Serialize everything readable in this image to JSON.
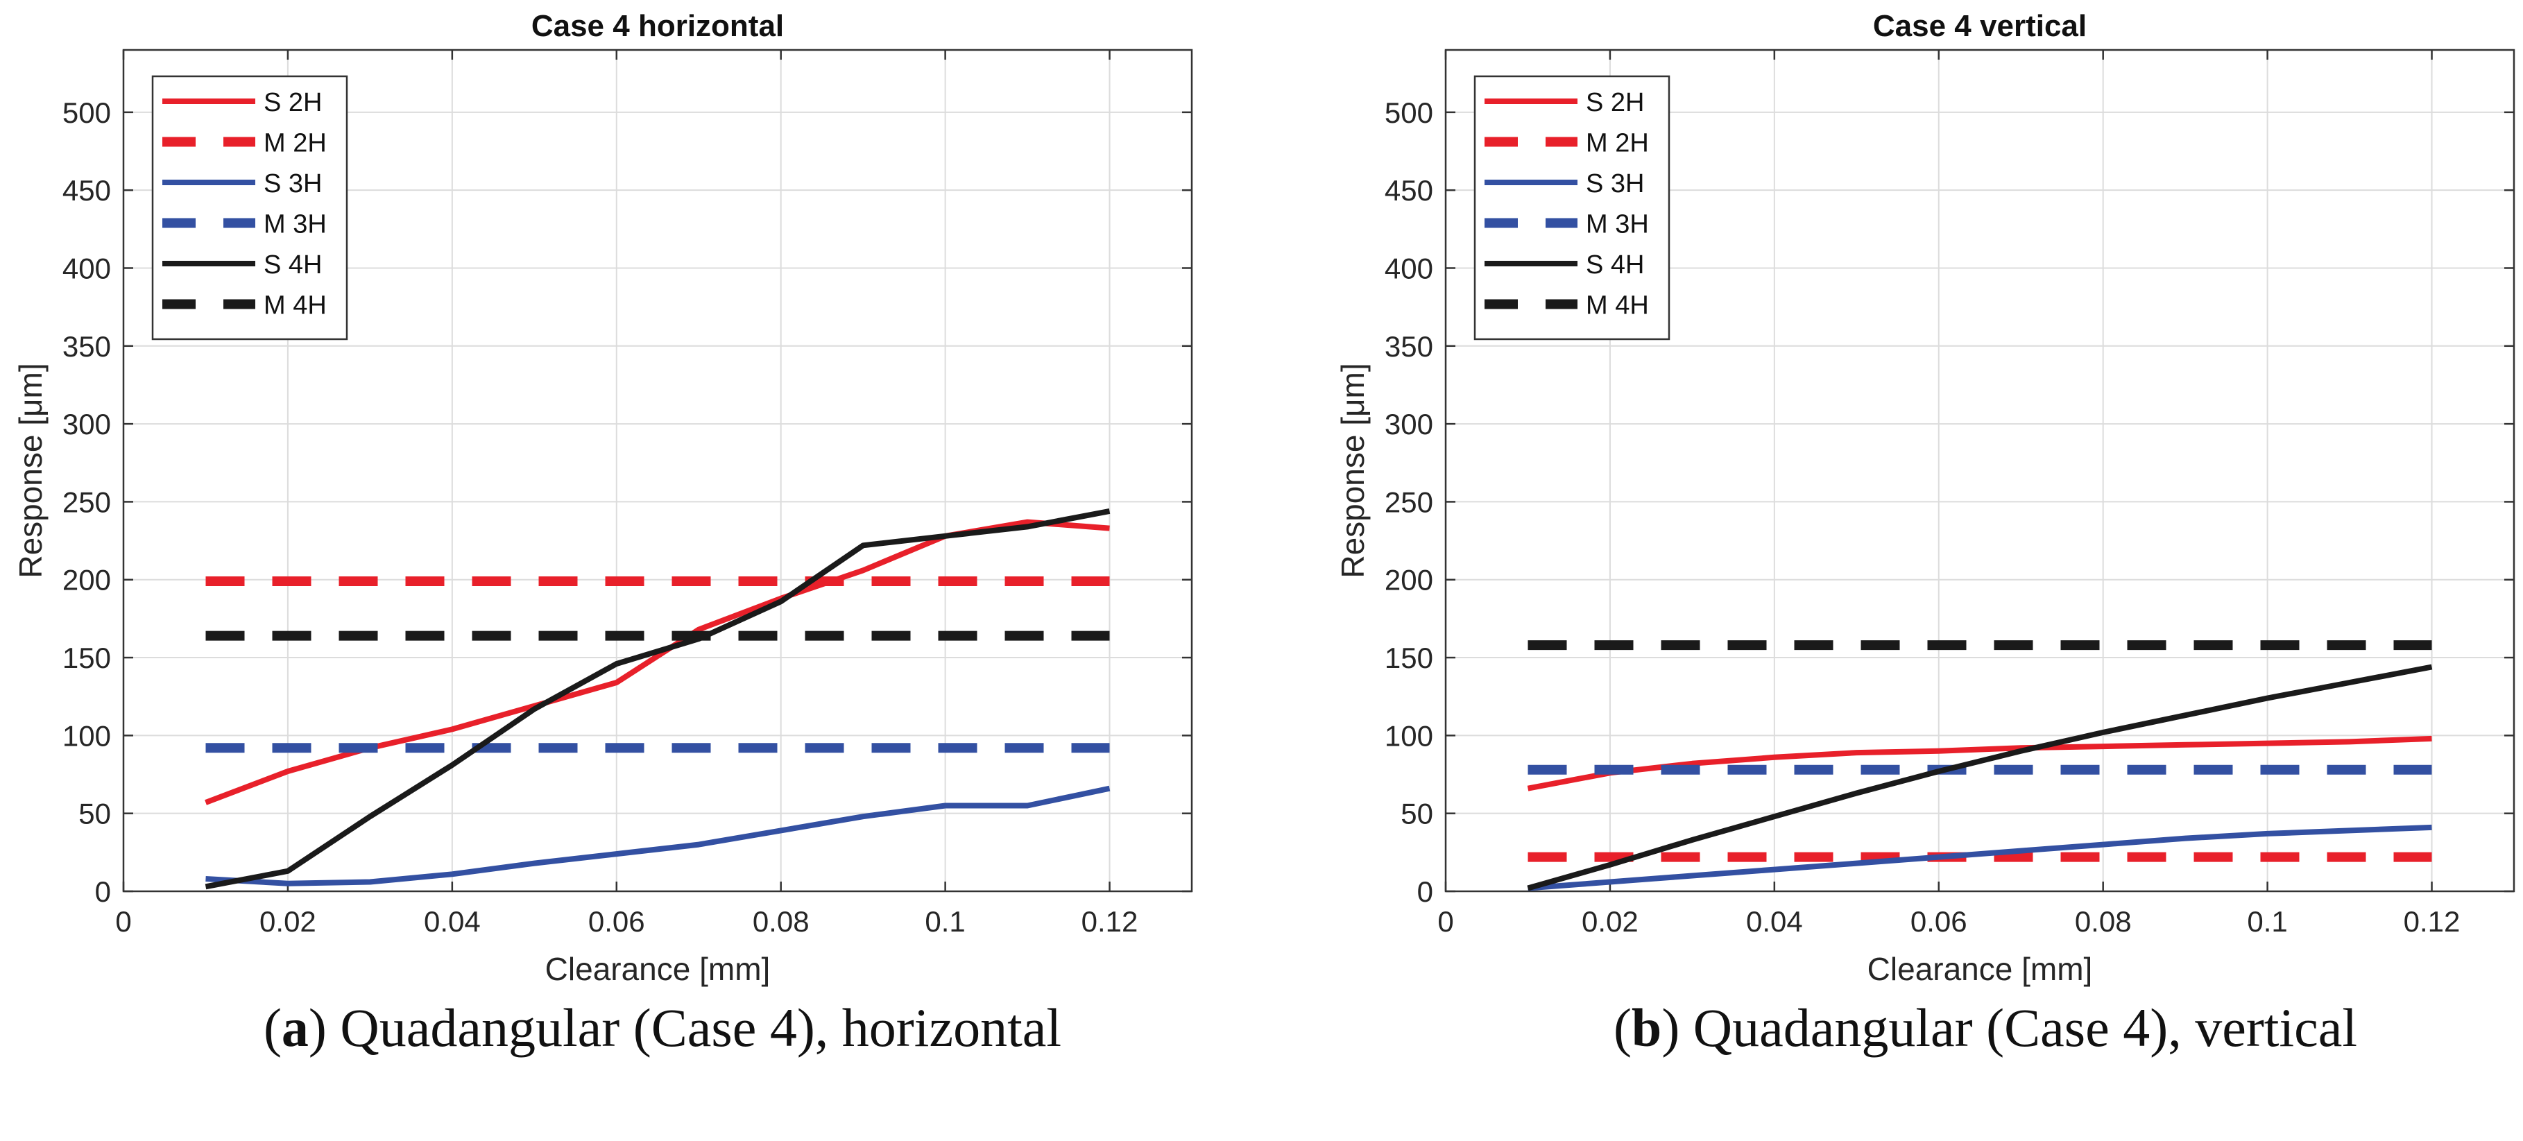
{
  "chart_data": [
    {
      "type": "line",
      "title": "Case 4 horizontal",
      "xlabel": "Clearance [mm]",
      "ylabel": "Response [μm]",
      "xlim": [
        0,
        0.13
      ],
      "ylim": [
        0,
        540
      ],
      "xticks": [
        0,
        0.02,
        0.04,
        0.06,
        0.08,
        0.1,
        0.12
      ],
      "xtick_labels": [
        "0",
        "0.02",
        "0.04",
        "0.06",
        "0.08",
        "0.1",
        "0.12"
      ],
      "yticks": [
        0,
        50,
        100,
        150,
        200,
        250,
        300,
        350,
        400,
        450,
        500
      ],
      "ytick_labels": [
        "0",
        "50",
        "100",
        "150",
        "200",
        "250",
        "300",
        "350",
        "400",
        "450",
        "500"
      ],
      "grid": true,
      "legend_position": "top-left",
      "caption_label": "a",
      "caption_text": "Quadangular (Case 4), horizontal",
      "series": [
        {
          "name": "S 2H",
          "color": "#e8202a",
          "style": "solid",
          "x": [
            0.01,
            0.02,
            0.03,
            0.04,
            0.05,
            0.06,
            0.07,
            0.08,
            0.09,
            0.1,
            0.11,
            0.12
          ],
          "y": [
            57,
            77,
            92,
            104,
            119,
            134,
            168,
            188,
            206,
            228,
            237,
            233
          ]
        },
        {
          "name": "M 2H",
          "color": "#e8202a",
          "style": "dashed",
          "x": [
            0.01,
            0.12
          ],
          "y": [
            199,
            199
          ]
        },
        {
          "name": "S 3H",
          "color": "#3350a2",
          "style": "solid",
          "x": [
            0.01,
            0.02,
            0.03,
            0.04,
            0.05,
            0.06,
            0.07,
            0.08,
            0.09,
            0.1,
            0.11,
            0.12
          ],
          "y": [
            8,
            5,
            6,
            11,
            18,
            24,
            30,
            39,
            48,
            55,
            55,
            66
          ]
        },
        {
          "name": "M 3H",
          "color": "#3350a2",
          "style": "dashed",
          "x": [
            0.01,
            0.12
          ],
          "y": [
            92,
            92
          ]
        },
        {
          "name": "S 4H",
          "color": "#1a1a1a",
          "style": "solid",
          "x": [
            0.01,
            0.02,
            0.03,
            0.04,
            0.05,
            0.06,
            0.07,
            0.08,
            0.09,
            0.1,
            0.11,
            0.12
          ],
          "y": [
            3,
            13,
            48,
            81,
            117,
            146,
            162,
            186,
            222,
            228,
            234,
            244
          ]
        },
        {
          "name": "M 4H",
          "color": "#1a1a1a",
          "style": "dashed",
          "x": [
            0.01,
            0.12
          ],
          "y": [
            164,
            164
          ]
        }
      ]
    },
    {
      "type": "line",
      "title": "Case 4 vertical",
      "xlabel": "Clearance [mm]",
      "ylabel": "Response [μm]",
      "xlim": [
        0,
        0.13
      ],
      "ylim": [
        0,
        540
      ],
      "xticks": [
        0,
        0.02,
        0.04,
        0.06,
        0.08,
        0.1,
        0.12
      ],
      "xtick_labels": [
        "0",
        "0.02",
        "0.04",
        "0.06",
        "0.08",
        "0.1",
        "0.12"
      ],
      "yticks": [
        0,
        50,
        100,
        150,
        200,
        250,
        300,
        350,
        400,
        450,
        500
      ],
      "ytick_labels": [
        "0",
        "50",
        "100",
        "150",
        "200",
        "250",
        "300",
        "350",
        "400",
        "450",
        "500"
      ],
      "grid": true,
      "legend_position": "top-left",
      "caption_label": "b",
      "caption_text": "Quadangular (Case 4), vertical",
      "series": [
        {
          "name": "S 2H",
          "color": "#e8202a",
          "style": "solid",
          "x": [
            0.01,
            0.02,
            0.03,
            0.04,
            0.05,
            0.06,
            0.07,
            0.08,
            0.09,
            0.1,
            0.11,
            0.12
          ],
          "y": [
            66,
            76,
            82,
            86,
            89,
            90,
            92,
            93,
            94,
            95,
            96,
            98
          ]
        },
        {
          "name": "M 2H",
          "color": "#e8202a",
          "style": "dashed",
          "x": [
            0.01,
            0.12
          ],
          "y": [
            22,
            22
          ]
        },
        {
          "name": "S 3H",
          "color": "#3350a2",
          "style": "solid",
          "x": [
            0.01,
            0.02,
            0.03,
            0.04,
            0.05,
            0.06,
            0.07,
            0.08,
            0.09,
            0.1,
            0.11,
            0.12
          ],
          "y": [
            2,
            6,
            10,
            14,
            18,
            22,
            26,
            30,
            34,
            37,
            39,
            41
          ]
        },
        {
          "name": "M 3H",
          "color": "#3350a2",
          "style": "dashed",
          "x": [
            0.01,
            0.12
          ],
          "y": [
            78,
            78
          ]
        },
        {
          "name": "S 4H",
          "color": "#1a1a1a",
          "style": "solid",
          "x": [
            0.01,
            0.02,
            0.03,
            0.04,
            0.05,
            0.06,
            0.07,
            0.08,
            0.09,
            0.1,
            0.11,
            0.12
          ],
          "y": [
            2,
            17,
            33,
            48,
            63,
            77,
            90,
            102,
            113,
            124,
            134,
            144
          ]
        },
        {
          "name": "M 4H",
          "color": "#1a1a1a",
          "style": "dashed",
          "x": [
            0.01,
            0.12
          ],
          "y": [
            158,
            158
          ]
        }
      ]
    }
  ]
}
